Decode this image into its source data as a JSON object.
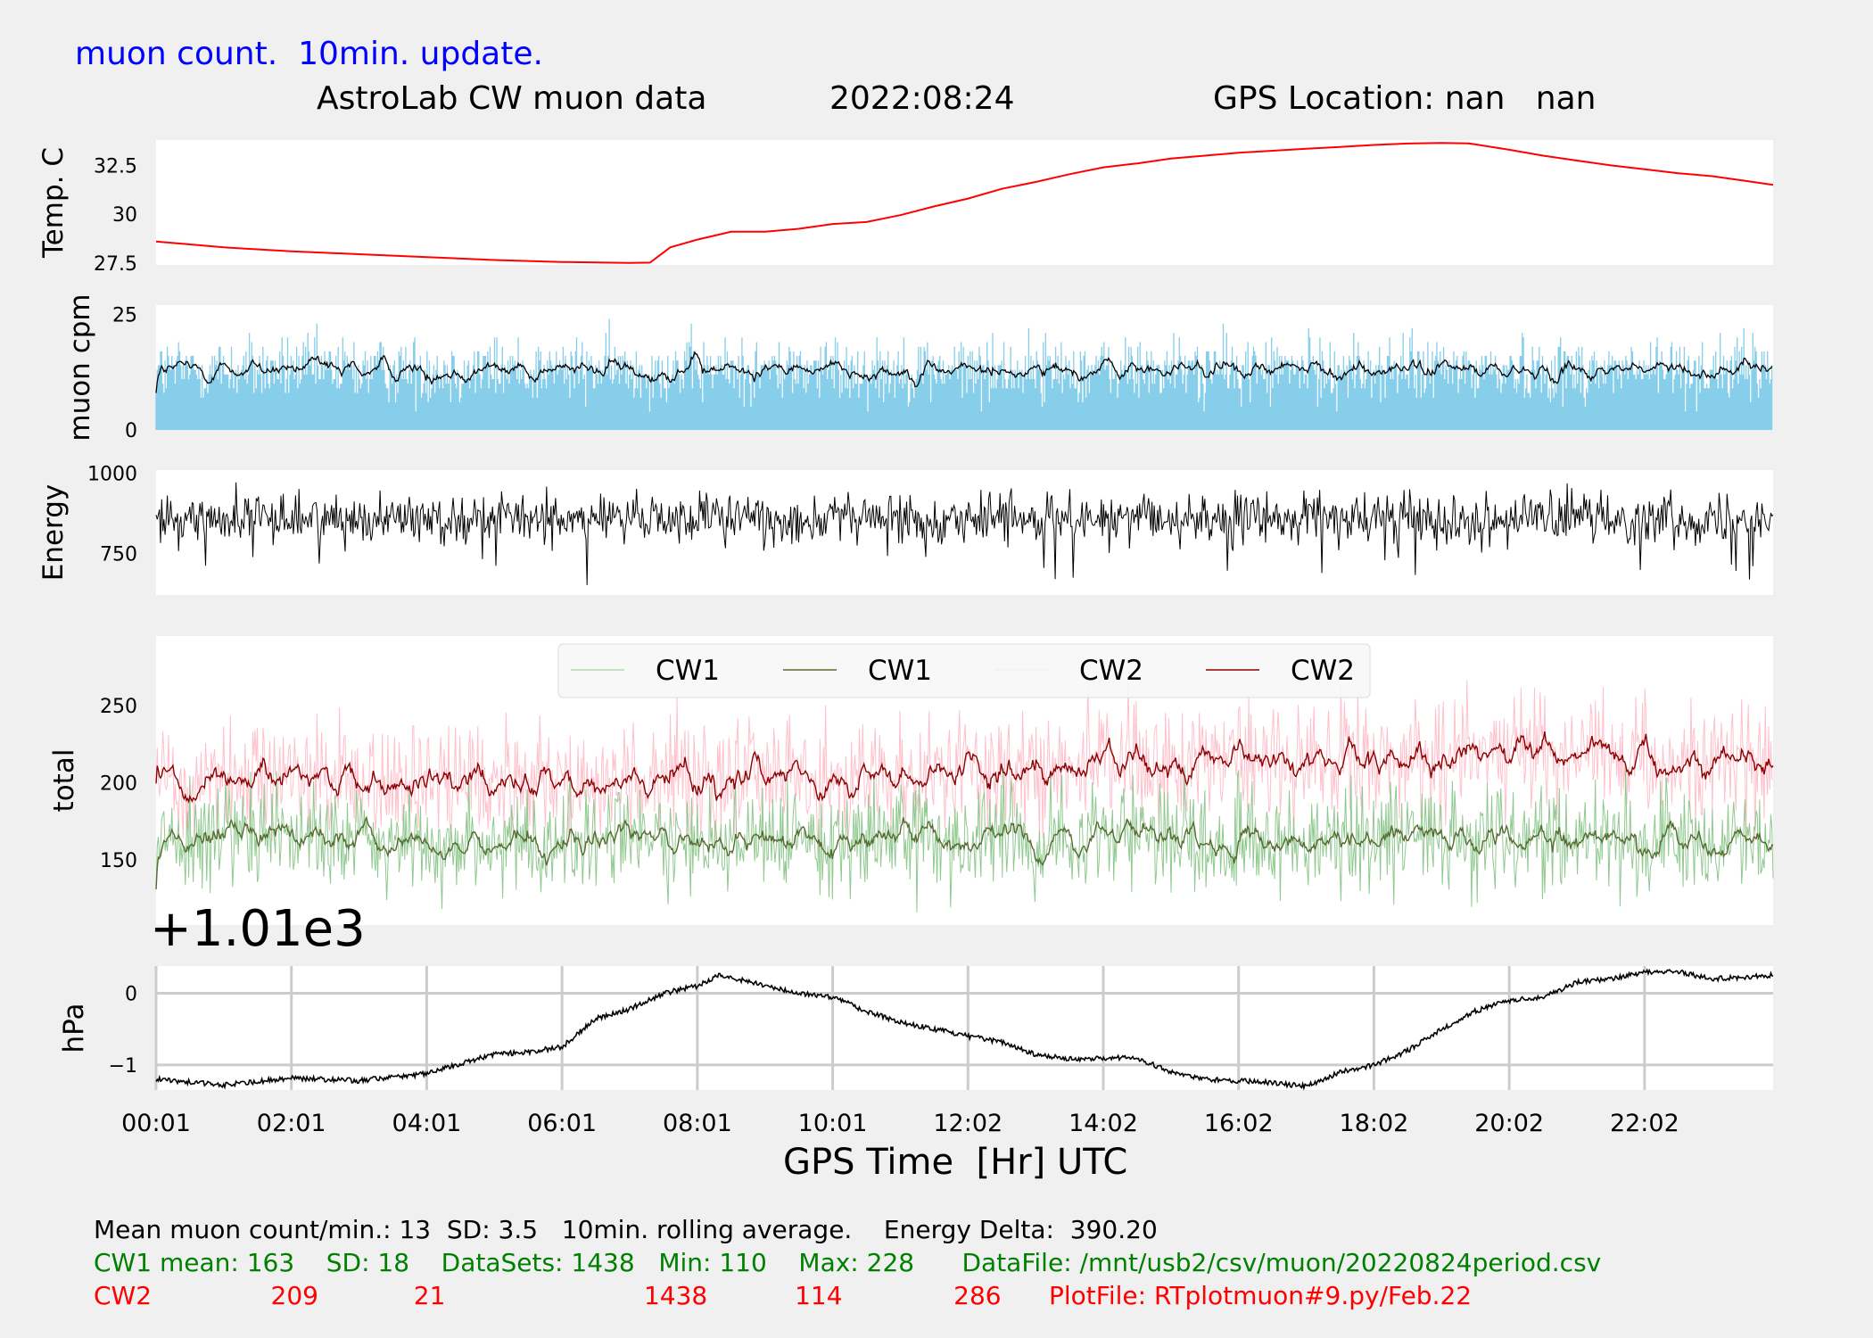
{
  "header": {
    "update_note": "muon count.  10min. update.",
    "title": "AstroLab CW muon data",
    "date": "2022:08:24",
    "gps_location": "GPS Location: nan   nan"
  },
  "colors": {
    "temp_line": "#ff0000",
    "muon_bars": "#87ceeb",
    "cw1_raw": "#8fc98f",
    "cw1_avg": "#556b2f",
    "cw2_raw": "#ffc0cb",
    "cw2_avg": "#8b0000",
    "grid": "#cccccc",
    "background": "#f0f0f0",
    "footer_cw1": "#008000",
    "footer_cw2": "#ff0000",
    "note_text": "#0000ff"
  },
  "chart_data": [
    {
      "id": "temp",
      "type": "line",
      "ylabel": "Temp. C",
      "yticks": [
        27.5,
        30.0,
        32.5
      ],
      "ylim": [
        27.4,
        33.8
      ],
      "x_range_hours": [
        0.0,
        23.9
      ],
      "series": [
        {
          "x": [
            0.0,
            1.0,
            2.0,
            3.0,
            4.0,
            5.0,
            6.0,
            7.0,
            7.3,
            7.6,
            8.0,
            8.5,
            9.0,
            9.5,
            10.0,
            10.5,
            11.0,
            11.5,
            12.0,
            12.5,
            13.0,
            13.5,
            14.0,
            14.5,
            15.0,
            15.5,
            16.0,
            16.5,
            17.0,
            17.5,
            18.0,
            18.5,
            19.0,
            19.4,
            20.0,
            20.5,
            21.0,
            21.5,
            22.0,
            22.5,
            23.0,
            23.5,
            23.9
          ],
          "y": [
            28.6,
            28.3,
            28.1,
            27.95,
            27.8,
            27.65,
            27.55,
            27.5,
            27.52,
            28.3,
            28.7,
            29.1,
            29.1,
            29.25,
            29.5,
            29.6,
            29.95,
            30.4,
            30.8,
            31.3,
            31.65,
            32.05,
            32.4,
            32.6,
            32.85,
            33.0,
            33.15,
            33.25,
            33.35,
            33.45,
            33.55,
            33.62,
            33.65,
            33.63,
            33.3,
            33.0,
            32.75,
            32.5,
            32.3,
            32.1,
            31.95,
            31.7,
            31.5
          ]
        }
      ]
    },
    {
      "id": "muon",
      "type": "bar",
      "ylabel": "muon cpm",
      "yticks": [
        0,
        25
      ],
      "ylim": [
        0,
        27
      ],
      "note": "Per-minute muon counts (light blue bars) with 10 min. rolling average (black line); mean 13, SD 3.5"
    },
    {
      "id": "energy",
      "type": "line",
      "ylabel": "Energy",
      "yticks": [
        750,
        1000
      ],
      "ylim": [
        620,
        1010
      ]
    },
    {
      "id": "total",
      "type": "line",
      "ylabel": "total",
      "yticks": [
        150,
        200,
        250
      ],
      "ylim": [
        108,
        295
      ],
      "legend": [
        "CW1",
        "CW1",
        "CW2",
        "CW2"
      ],
      "cw1": {
        "mean": 163,
        "sd": 18
      },
      "cw2": {
        "mean": 209,
        "sd": 21
      }
    },
    {
      "id": "pressure",
      "type": "line",
      "offset_label": "+1.01e3",
      "ylabel": "hPa",
      "yticks": [
        -1,
        0
      ],
      "ylim": [
        -1.35,
        0.38
      ],
      "grid": true,
      "xlabel": "GPS Time  [Hr] UTC",
      "xticks": [
        "00:01",
        "02:01",
        "04:01",
        "06:01",
        "08:01",
        "10:01",
        "12:02",
        "14:02",
        "16:02",
        "18:02",
        "20:02",
        "22:02"
      ],
      "series": [
        {
          "x": [
            0.0,
            1.0,
            2.0,
            3.0,
            4.0,
            5.0,
            5.5,
            6.0,
            6.5,
            7.0,
            7.5,
            8.0,
            8.3,
            8.6,
            9.0,
            9.5,
            10.0,
            10.5,
            11.0,
            11.5,
            12.0,
            12.5,
            13.0,
            13.5,
            14.0,
            14.5,
            15.0,
            15.5,
            16.0,
            16.5,
            17.0,
            17.5,
            18.0,
            18.5,
            19.0,
            19.5,
            20.0,
            20.5,
            21.0,
            21.5,
            22.0,
            22.5,
            23.0,
            23.9
          ],
          "y": [
            -1.2,
            -1.28,
            -1.18,
            -1.22,
            -1.12,
            -0.85,
            -0.82,
            -0.75,
            -0.35,
            -0.22,
            0.0,
            0.1,
            0.25,
            0.2,
            0.1,
            0.0,
            -0.05,
            -0.25,
            -0.4,
            -0.5,
            -0.6,
            -0.68,
            -0.85,
            -0.92,
            -0.9,
            -0.9,
            -1.1,
            -1.2,
            -1.22,
            -1.25,
            -1.3,
            -1.1,
            -1.0,
            -0.8,
            -0.5,
            -0.25,
            -0.1,
            -0.05,
            0.15,
            0.2,
            0.3,
            0.3,
            0.2,
            0.25
          ]
        }
      ]
    }
  ],
  "footer": {
    "line1": "Mean muon count/min.: 13  SD: 3.5   10min. rolling average.    Energy Delta:  390.20",
    "cw1_line": "CW1 mean: 163    SD: 18    DataSets: 1438   Min: 110    Max: 228      DataFile: /mnt/usb2/csv/muon/20220824period.csv",
    "cw2_line": "CW2               209            21                         1438           114              286      PlotFile: RTplotmuon#9.py/Feb.22"
  }
}
